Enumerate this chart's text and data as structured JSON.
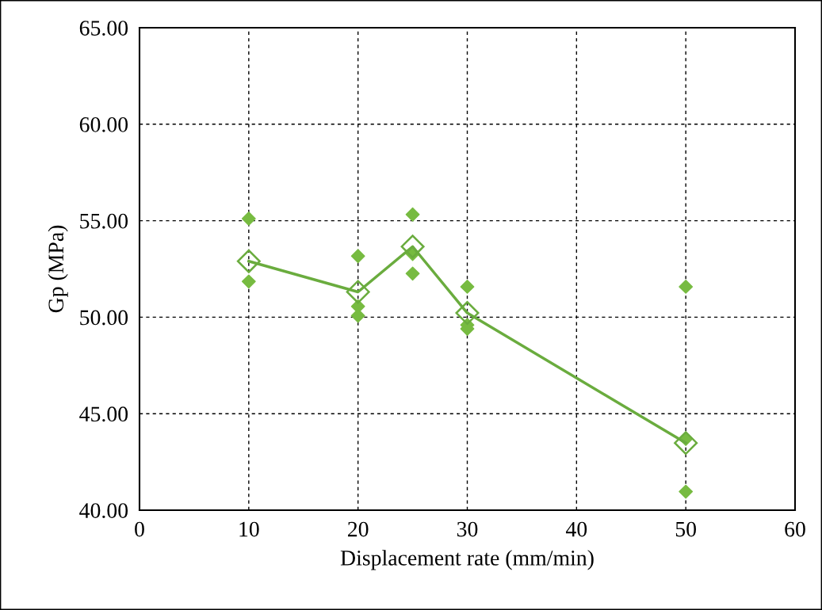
{
  "chart_data": {
    "type": "scatter",
    "xlabel": "Displacement rate (mm/min)",
    "ylabel": "Gp (MPa)",
    "xlim": [
      0,
      60
    ],
    "xticks": [
      0,
      10,
      20,
      30,
      40,
      50,
      60
    ],
    "ylim": [
      40,
      65
    ],
    "yticks": [
      {
        "value": 40,
        "label": "40.00"
      },
      {
        "value": 45,
        "label": "45.00"
      },
      {
        "value": 50,
        "label": "50.00"
      },
      {
        "value": 55,
        "label": "55.00"
      },
      {
        "value": 60,
        "label": "60.00"
      },
      {
        "value": 65,
        "label": "65.00"
      }
    ],
    "grid": true,
    "legend": false,
    "series": [
      {
        "marker": "diamond",
        "color": "#77bb41",
        "x": [
          10,
          10,
          20,
          20,
          20,
          25,
          25,
          25,
          30,
          30,
          30,
          50,
          50,
          50
        ],
        "values": [
          55.11,
          51.85,
          53.17,
          50.56,
          50.08,
          55.32,
          53.28,
          52.26,
          51.58,
          49.6,
          49.4,
          51.58,
          43.69,
          40.96
        ]
      },
      {
        "type": "line",
        "marker": "diamond",
        "color": "#6aac3e",
        "x": [
          10,
          20,
          25,
          30,
          50
        ],
        "values": [
          52.9,
          51.31,
          53.66,
          50.22,
          43.48
        ]
      }
    ]
  }
}
